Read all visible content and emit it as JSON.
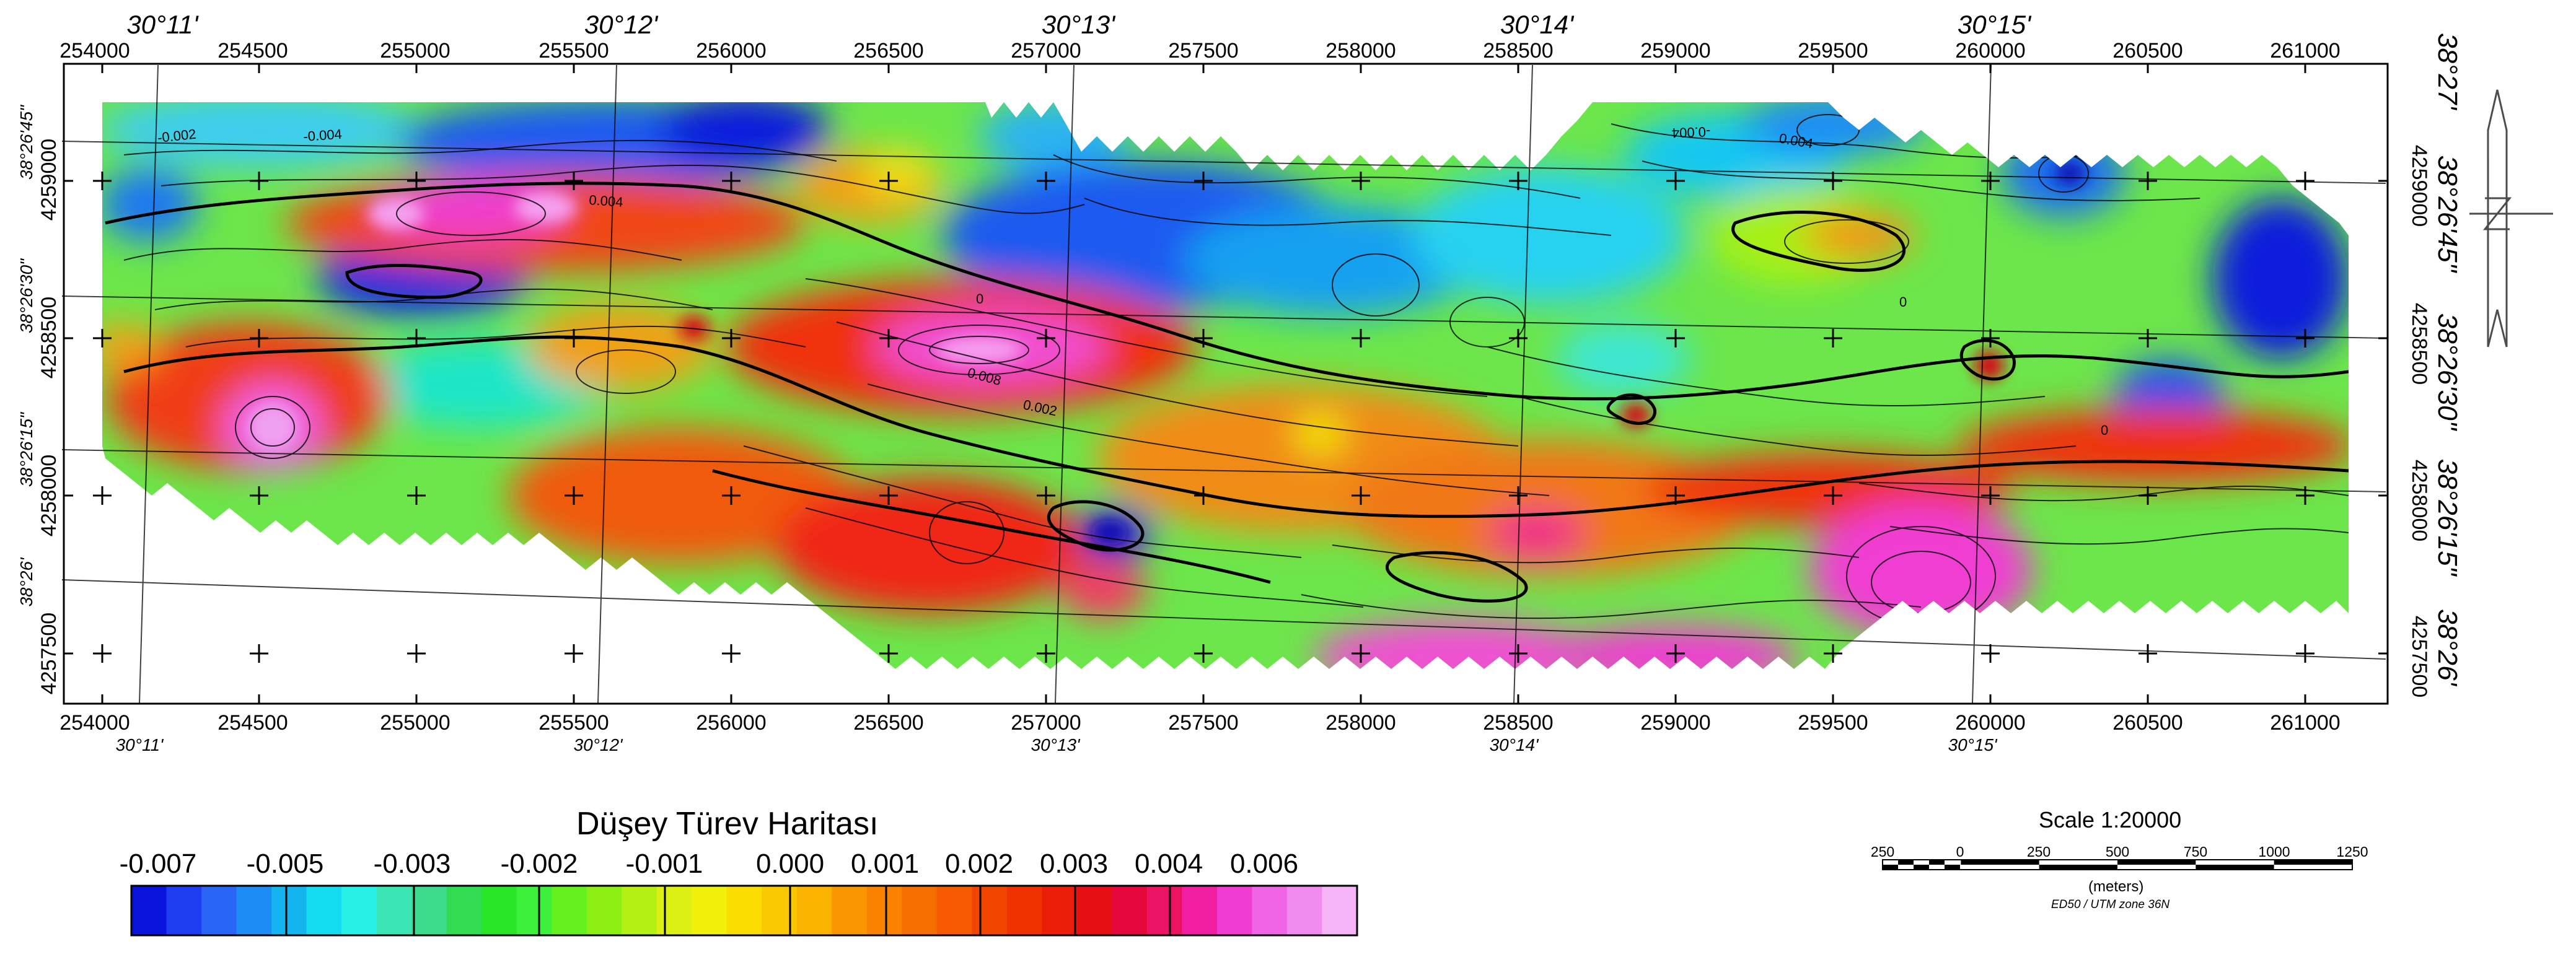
{
  "map": {
    "x_ticks_top": [
      "254000",
      "254500",
      "255000",
      "255500",
      "256000",
      "256500",
      "257000",
      "257500",
      "258000",
      "258500",
      "259000",
      "259500",
      "260000",
      "260500",
      "261000"
    ],
    "x_ticks_bottom": [
      "254000",
      "254500",
      "255000",
      "255500",
      "256000",
      "256500",
      "257000",
      "257500",
      "258000",
      "258500",
      "259000",
      "259500",
      "260000",
      "260500",
      "261000"
    ],
    "lon_labels_top": [
      "30°11'",
      "30°12'",
      "30°13'",
      "30°14'",
      "30°15'"
    ],
    "lon_labels_bottom": [
      "30°11'",
      "30°12'",
      "30°13'",
      "30°14'",
      "30°15'"
    ],
    "y_ticks_left": [
      "4259000",
      "4258500",
      "4258000",
      "4257500"
    ],
    "y_ticks_right": [
      "4259000",
      "4258500",
      "4258000",
      "4257500"
    ],
    "lat_labels_left": [
      "38°26'45\"",
      "38°26'30\"",
      "38°26'15\"",
      "38°26'"
    ],
    "lat_labels_right": [
      "38°27'",
      "38°26'45\"",
      "38°26'30\"",
      "38°26'15\"",
      "38°26'"
    ],
    "contour_labels": [
      "-0.002",
      "-0.004",
      "0.004",
      "-0.004",
      "0",
      "0.008",
      "0.002",
      "0.004",
      "0",
      "0"
    ]
  },
  "legend": {
    "title": "Düşey Türev Haritası",
    "labels": [
      "-0.007",
      "-0.005",
      "-0.003",
      "-0.002",
      "-0.001",
      "0.000",
      "0.001",
      "0.002",
      "0.003",
      "0.004",
      "0.006"
    ],
    "colors": [
      "#0a14dc",
      "#1e3cf0",
      "#2864f5",
      "#1e8cf5",
      "#14b4f0",
      "#14dcf0",
      "#28f0e6",
      "#3ce6b4",
      "#3cdc8c",
      "#32dc50",
      "#28e628",
      "#3cf03c",
      "#64f01e",
      "#8cf014",
      "#b4f014",
      "#dcf014",
      "#f0f00a",
      "#fadc00",
      "#fac800",
      "#fab400",
      "#fa9600",
      "#fa8200",
      "#f56e00",
      "#f55a00",
      "#f04600",
      "#f03200",
      "#eb1e0a",
      "#e60f14",
      "#e6083c",
      "#eb1464",
      "#f01ea0",
      "#f03cd2",
      "#f064e6",
      "#f08cf0",
      "#f5b4f5"
    ]
  },
  "scale": {
    "title": "Scale 1:20000",
    "labels": [
      "250",
      "0",
      "250",
      "500",
      "750",
      "1000",
      "1250"
    ],
    "units": "(meters)",
    "projection": "ED50 / UTM zone 36N"
  },
  "north_arrow": {
    "icon": "north-arrow-icon"
  }
}
